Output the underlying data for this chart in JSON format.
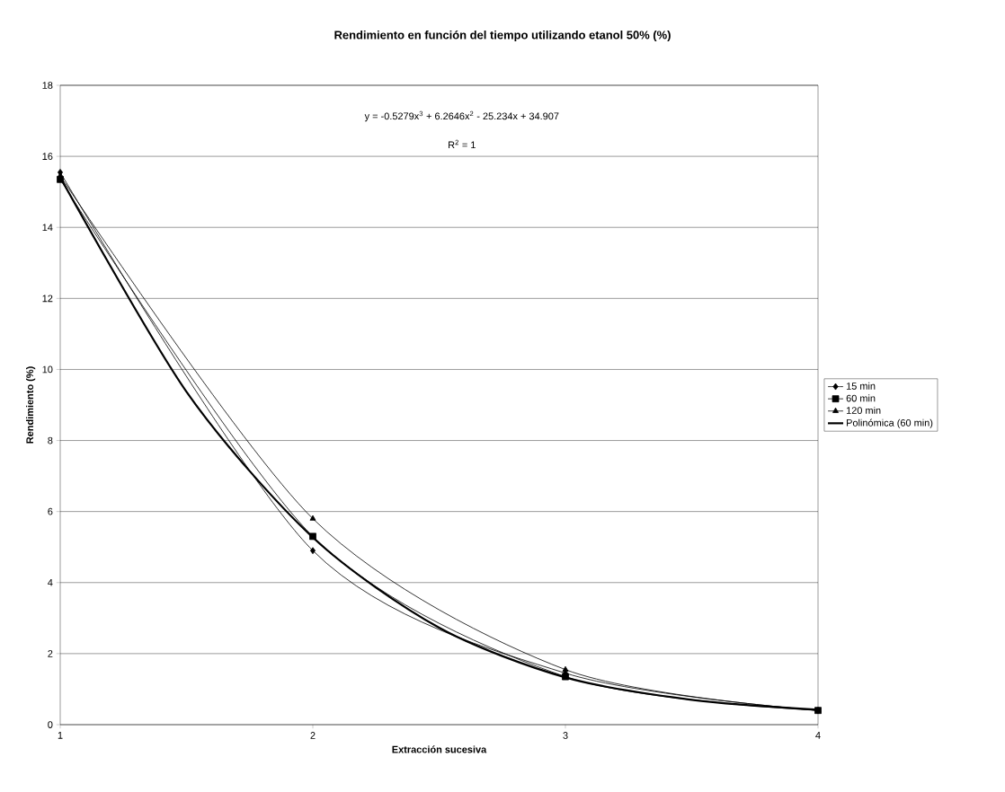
{
  "chart_data": {
    "type": "line",
    "title": "Rendimiento en función del tiempo utilizando etanol 50% (%)",
    "xlabel": "Extracción sucesiva",
    "ylabel": "Rendimiento (%)",
    "x": [
      1,
      2,
      3,
      4
    ],
    "xlim": [
      1,
      4
    ],
    "xticks": [
      1,
      2,
      3,
      4
    ],
    "ylim": [
      0,
      18
    ],
    "yticks": [
      0,
      2,
      4,
      6,
      8,
      10,
      12,
      14,
      16,
      18
    ],
    "grid": "y",
    "legend": "right",
    "annotations": [
      "y = -0.5279x$^{3}$ + 6.2646x$^{2}$ - 25.234x + 34.907",
      "R$^{2}$ = 1"
    ],
    "series": [
      {
        "name": "15 min",
        "color": "#000000",
        "marker": "diamond",
        "values": [
          15.55,
          4.9,
          1.45,
          0.4
        ]
      },
      {
        "name": "60 min",
        "color": "#000000",
        "marker": "square",
        "values": [
          15.35,
          5.3,
          1.35,
          0.4
        ]
      },
      {
        "name": "120 min",
        "color": "#000000",
        "marker": "triangle",
        "values": [
          15.45,
          5.8,
          1.55,
          0.4
        ]
      },
      {
        "name": "Polinómica (60 min)",
        "color": "#000000",
        "marker": "none",
        "x": [
          1,
          1.5,
          2,
          2.5,
          3,
          3.5,
          4
        ],
        "values": [
          15.41,
          9.37,
          5.27,
          2.73,
          1.33,
          0.7,
          0.42
        ]
      }
    ]
  }
}
